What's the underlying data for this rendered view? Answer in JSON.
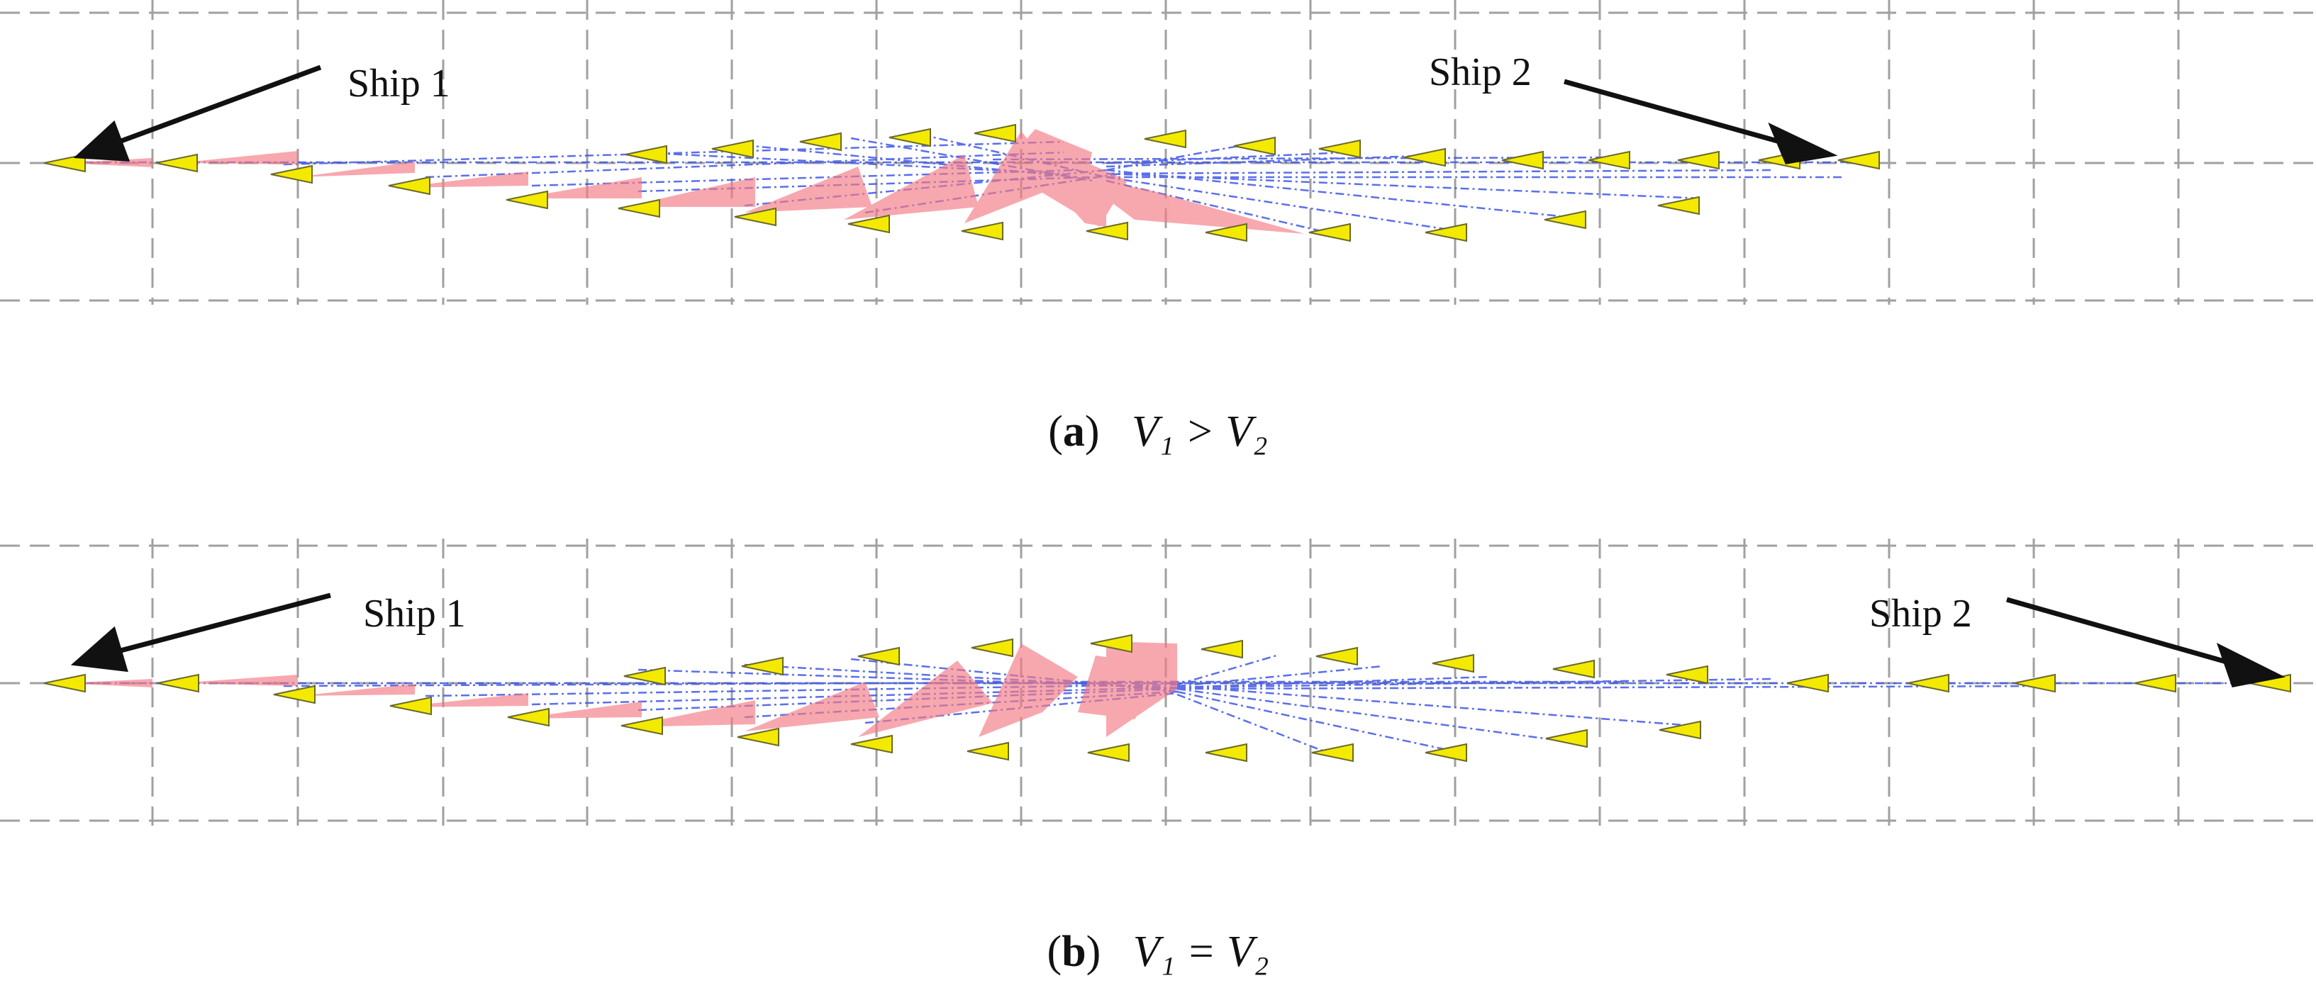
{
  "figure": {
    "panels": [
      {
        "id": "a",
        "caption_letter": "a",
        "caption_math": "V₁ > V₂",
        "ship1_label": "Ship 1",
        "ship2_label": "Ship 2"
      },
      {
        "id": "b",
        "caption_letter": "b",
        "caption_math": "V₁ = V₂",
        "ship1_label": "Ship 1",
        "ship2_label": "Ship 2"
      }
    ]
  },
  "colors": {
    "ship_fill": "#f4ea00",
    "ship_stroke": "#6a6a2a",
    "domain_fill": "#f47a84",
    "trajectory": "#3f56e8",
    "grid": "#9e9e9e",
    "arrow": "#111111"
  }
}
